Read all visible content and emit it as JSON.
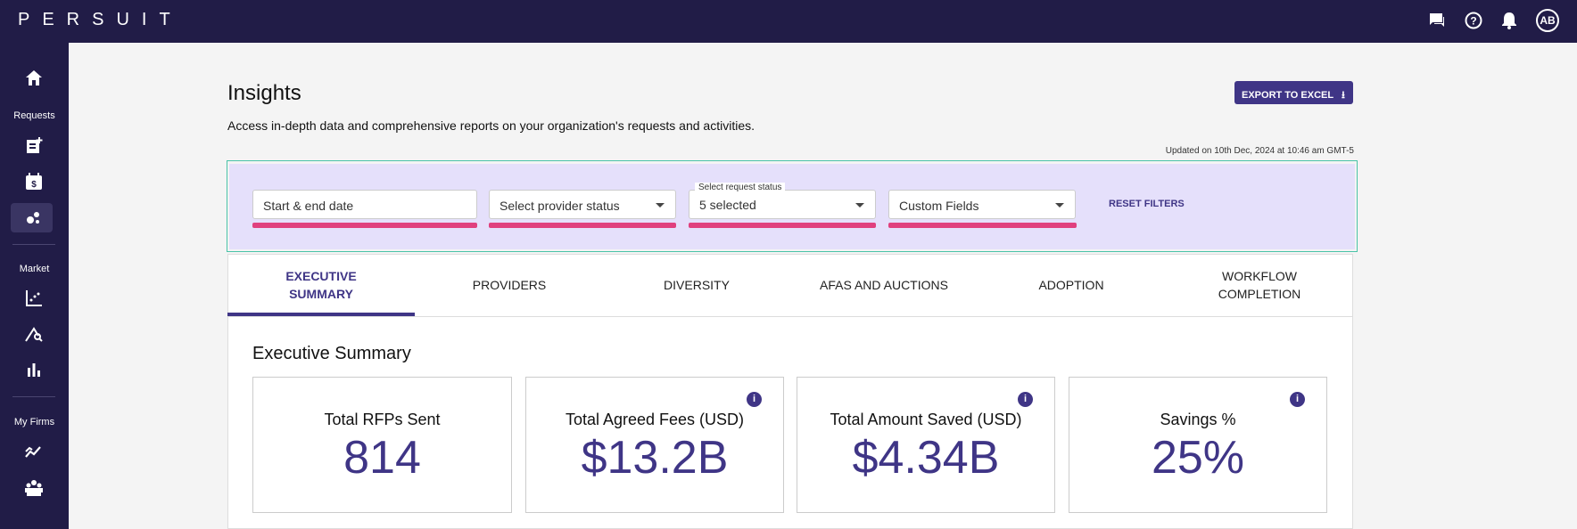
{
  "header": {
    "logo": "PERSUIT",
    "avatar": "AB"
  },
  "sidebar": {
    "sections": [
      "Requests",
      "Market",
      "My Firms"
    ]
  },
  "page": {
    "title": "Insights",
    "subtitle": "Access in-depth data and comprehensive reports on your organization's requests and activities.",
    "export_button": "EXPORT TO EXCEL",
    "updated": "Updated on 10th Dec, 2024 at 10:46 am GMT-5"
  },
  "filters": {
    "date": "Start & end date",
    "provider_status": "Select provider status",
    "request_status_label": "Select request status",
    "request_status_value": "5 selected",
    "custom_fields": "Custom Fields",
    "reset": "RESET FILTERS"
  },
  "tabs": [
    "EXECUTIVE SUMMARY",
    "PROVIDERS",
    "DIVERSITY",
    "AFAS AND AUCTIONS",
    "ADOPTION",
    "WORKFLOW COMPLETION"
  ],
  "summary": {
    "title": "Executive Summary",
    "cards": [
      {
        "label": "Total RFPs Sent",
        "value": "814"
      },
      {
        "label": "Total Agreed Fees (USD)",
        "value": "$13.2B"
      },
      {
        "label": "Total Amount Saved (USD)",
        "value": "$4.34B"
      },
      {
        "label": "Savings %",
        "value": "25%"
      }
    ]
  }
}
